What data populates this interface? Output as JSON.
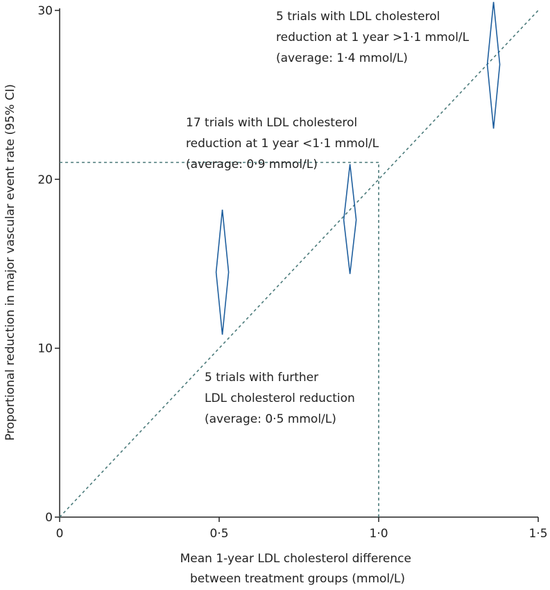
{
  "chart_data": {
    "type": "scatter",
    "title": "",
    "xlabel_lines": [
      "Mean 1-year LDL cholesterol difference",
      "between treatment groups (mmol/L)"
    ],
    "ylabel": "Proportional reduction in major vascular event rate (95% CI)",
    "xlim": [
      0,
      1.5
    ],
    "ylim": [
      0,
      30
    ],
    "x_ticks": [
      0,
      0.5,
      1.0,
      1.5
    ],
    "x_tick_labels": [
      "0",
      "0·5",
      "1·0",
      "1·5"
    ],
    "y_ticks": [
      0,
      10,
      20,
      30
    ],
    "y_tick_labels": [
      "0",
      "10",
      "20",
      "30"
    ],
    "grid": false,
    "series": [
      {
        "marker": "diamond",
        "color": "#1f5f9e",
        "points": [
          {
            "x": 0.51,
            "y": 14.5,
            "ci_low": 10.8,
            "ci_high": 18.2
          },
          {
            "x": 0.91,
            "y": 17.6,
            "ci_low": 14.4,
            "ci_high": 20.9
          },
          {
            "x": 1.36,
            "y": 26.8,
            "ci_low": 23.0,
            "ci_high": 30.5
          }
        ]
      }
    ],
    "reference_line": {
      "from": [
        0,
        0
      ],
      "to": [
        1.5,
        30
      ],
      "style": "dashed",
      "color": "#4a7a7a"
    },
    "guide_lines": [
      {
        "from": [
          0,
          21
        ],
        "to": [
          1.0,
          21
        ],
        "style": "dashed"
      },
      {
        "from": [
          1.0,
          0
        ],
        "to": [
          1.0,
          21
        ],
        "style": "dashed"
      }
    ],
    "annotations": [
      {
        "lines": [
          "5 trials with LDL cholesterol",
          "reduction at 1 year >1·1 mmol/L",
          "(average: 1·4 mmol/L)"
        ]
      },
      {
        "lines": [
          "17 trials with LDL cholesterol",
          "reduction at 1 year <1·1 mmol/L",
          "(average: 0·9 mmol/L)"
        ]
      },
      {
        "lines": [
          "5 trials with further",
          "LDL cholesterol reduction",
          "(average: 0·5 mmol/L)"
        ]
      }
    ]
  }
}
